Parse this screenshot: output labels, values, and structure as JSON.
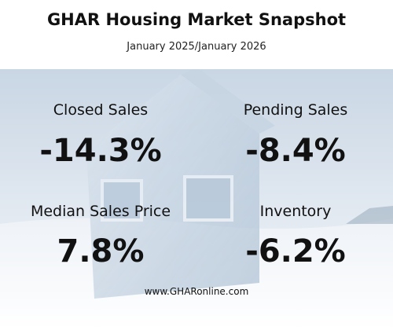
{
  "header": {
    "title": "GHAR Housing Market Snapshot",
    "subtitle": "January 2025/January 2026"
  },
  "stats": [
    {
      "label": "Closed Sales",
      "value": "-14.3%"
    },
    {
      "label": "Pending Sales",
      "value": "-8.4%"
    },
    {
      "label": "Median Sales Price",
      "value": "7.8%"
    },
    {
      "label": "Inventory",
      "value": "-6.2%"
    }
  ],
  "footer": {
    "url": "www.GHARonline.com"
  }
}
